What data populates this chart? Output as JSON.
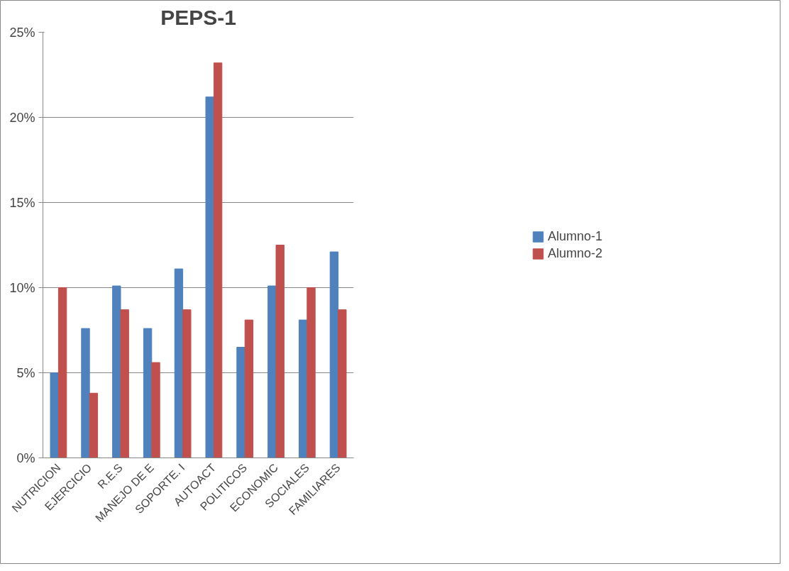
{
  "chart_data": {
    "type": "bar",
    "title": "PEPS-1",
    "categories": [
      "NUTRICION",
      "EJERCICIO",
      "R.E.S",
      "MANEJO DE E",
      "SOPORTE. I",
      "AUTOACT",
      "POLITICOS",
      "ECONOMIC",
      "SOCIALES",
      "FAMILIARES"
    ],
    "series": [
      {
        "name": "Alumno-1",
        "color": "#4f81bd",
        "values": [
          5.0,
          7.6,
          10.1,
          7.6,
          11.1,
          21.2,
          6.5,
          10.1,
          8.1,
          12.1
        ]
      },
      {
        "name": "Alumno-2",
        "color": "#c0504d",
        "values": [
          10.0,
          3.8,
          8.7,
          5.6,
          8.7,
          23.2,
          8.1,
          12.5,
          10.0,
          8.7
        ]
      }
    ],
    "ylim": [
      0,
      25
    ],
    "yticks": [
      {
        "value": 0,
        "label": "0%"
      },
      {
        "value": 5,
        "label": "5%"
      },
      {
        "value": 10,
        "label": "10%"
      },
      {
        "value": 15,
        "label": "15%"
      },
      {
        "value": 20,
        "label": "20%"
      },
      {
        "value": 25,
        "label": "25%"
      }
    ],
    "grid": "y",
    "legend": "right"
  }
}
